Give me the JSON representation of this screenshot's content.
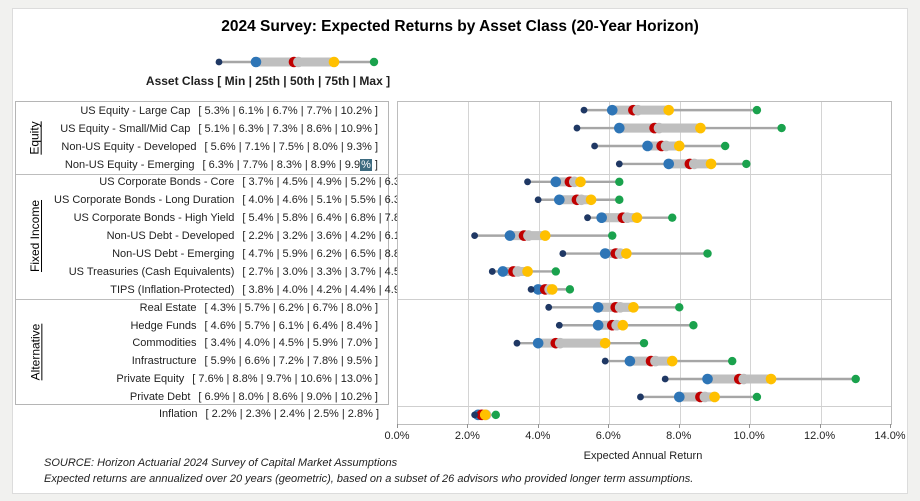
{
  "title": "2024 Survey: Expected Returns by Asset Class (20-Year Horizon)",
  "legend": {
    "label": "Asset Class [ Min | 25th | 50th | 75th | Max ]"
  },
  "colors": {
    "min": "#1F3864",
    "p25": "#2E75B6",
    "p50": "#C00000",
    "p75": "#FFC000",
    "max": "#1AA24D",
    "bar": "#BFBFBF",
    "whisker": "#A6A6A6"
  },
  "chart_data": {
    "type": "boxplot",
    "title": "2024 Survey: Expected Returns by Asset Class (20-Year Horizon)",
    "xlabel": "Expected Annual Return",
    "xlim": [
      0,
      14
    ],
    "x_ticks": [
      "0.0%",
      "2.0%",
      "4.0%",
      "6.0%",
      "8.0%",
      "10.0%",
      "12.0%",
      "14.0%"
    ],
    "grid": true,
    "legend_position": "top-left",
    "statistics": [
      "Min",
      "25th",
      "50th",
      "75th",
      "Max"
    ],
    "groups": [
      {
        "name": "Equity",
        "rows": [
          {
            "label": "US Equity - Large Cap",
            "min": 5.3,
            "p25": 6.1,
            "p50": 6.7,
            "p75": 7.7,
            "max": 10.2
          },
          {
            "label": "US Equity - Small/Mid Cap",
            "min": 5.1,
            "p25": 6.3,
            "p50": 7.3,
            "p75": 8.6,
            "max": 10.9
          },
          {
            "label": "Non-US Equity - Developed",
            "min": 5.6,
            "p25": 7.1,
            "p50": 7.5,
            "p75": 8.0,
            "max": 9.3
          },
          {
            "label": "Non-US Equity - Emerging",
            "min": 6.3,
            "p25": 7.7,
            "p50": 8.3,
            "p75": 8.9,
            "max": 9.9,
            "max_pct_highlighted": true
          }
        ]
      },
      {
        "name": "Fixed Income",
        "rows": [
          {
            "label": "US Corporate Bonds - Core",
            "min": 3.7,
            "p25": 4.5,
            "p50": 4.9,
            "p75": 5.2,
            "max": 6.3
          },
          {
            "label": "US Corporate Bonds - Long Duration",
            "min": 4.0,
            "p25": 4.6,
            "p50": 5.1,
            "p75": 5.5,
            "max": 6.3
          },
          {
            "label": "US Corporate Bonds - High Yield",
            "min": 5.4,
            "p25": 5.8,
            "p50": 6.4,
            "p75": 6.8,
            "max": 7.8
          },
          {
            "label": "Non-US Debt - Developed",
            "min": 2.2,
            "p25": 3.2,
            "p50": 3.6,
            "p75": 4.2,
            "max": 6.1
          },
          {
            "label": "Non-US Debt - Emerging",
            "min": 4.7,
            "p25": 5.9,
            "p50": 6.2,
            "p75": 6.5,
            "max": 8.8
          },
          {
            "label": "US Treasuries (Cash Equivalents)",
            "min": 2.7,
            "p25": 3.0,
            "p50": 3.3,
            "p75": 3.7,
            "max": 4.5
          },
          {
            "label": "TIPS (Inflation-Protected)",
            "min": 3.8,
            "p25": 4.0,
            "p50": 4.2,
            "p75": 4.4,
            "max": 4.9
          }
        ]
      },
      {
        "name": "Alternative",
        "rows": [
          {
            "label": "Real Estate",
            "min": 4.3,
            "p25": 5.7,
            "p50": 6.2,
            "p75": 6.7,
            "max": 8.0
          },
          {
            "label": "Hedge Funds",
            "min": 4.6,
            "p25": 5.7,
            "p50": 6.1,
            "p75": 6.4,
            "max": 8.4
          },
          {
            "label": "Commodities",
            "min": 3.4,
            "p25": 4.0,
            "p50": 4.5,
            "p75": 5.9,
            "max": 7.0
          },
          {
            "label": "Infrastructure",
            "min": 5.9,
            "p25": 6.6,
            "p50": 7.2,
            "p75": 7.8,
            "max": 9.5
          },
          {
            "label": "Private Equity",
            "min": 7.6,
            "p25": 8.8,
            "p50": 9.7,
            "p75": 10.6,
            "max": 13.0
          },
          {
            "label": "Private Debt",
            "min": 6.9,
            "p25": 8.0,
            "p50": 8.6,
            "p75": 9.0,
            "max": 10.2
          }
        ]
      }
    ],
    "inflation": {
      "label": "Inflation",
      "min": 2.2,
      "p25": 2.3,
      "p50": 2.4,
      "p75": 2.5,
      "max": 2.8
    }
  },
  "footer": {
    "source": "SOURCE:  Horizon Actuarial 2024 Survey of Capital Market Assumptions",
    "note": "Expected returns are annualized over 20 years (geometric), based on a subset of 26 advisors who provided longer term assumptions."
  }
}
